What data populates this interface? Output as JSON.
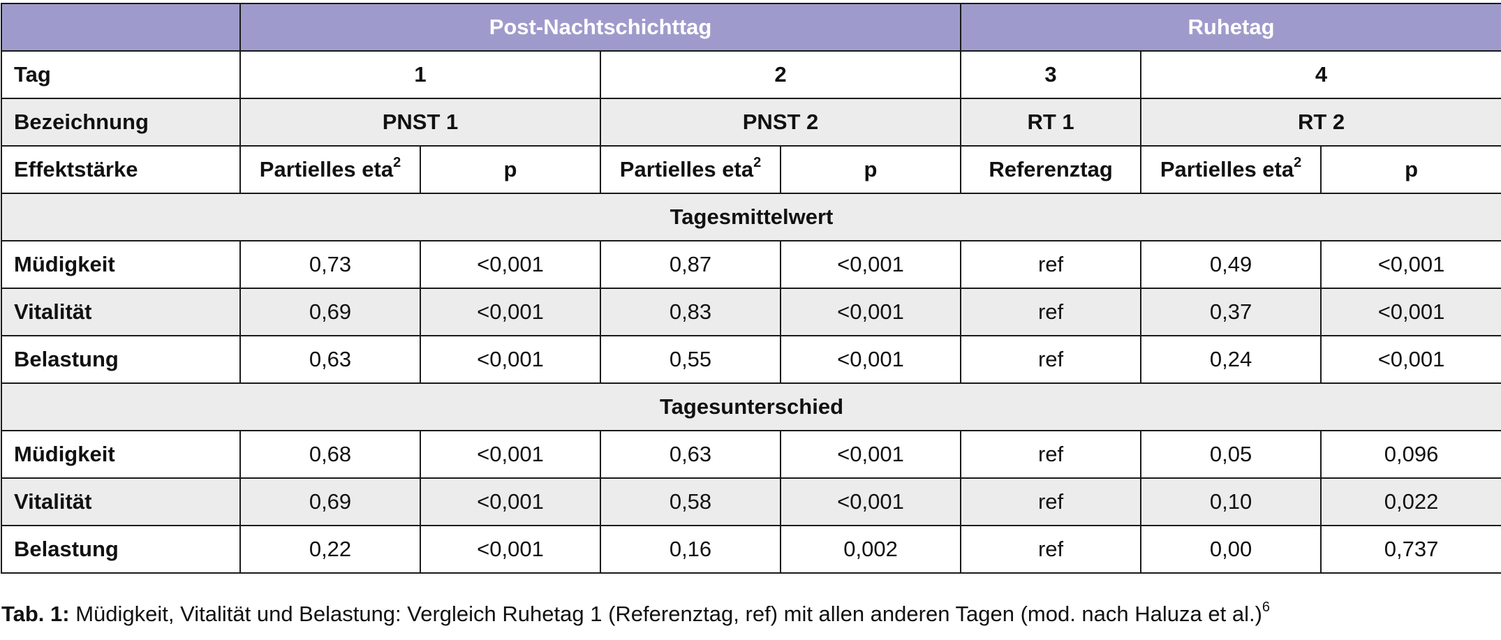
{
  "table": {
    "group_headers": [
      "Post-Nachtschichttag",
      "Ruhetag"
    ],
    "tag_row": {
      "label": "Tag",
      "values": [
        "1",
        "2",
        "3",
        "4"
      ]
    },
    "bezeichnung_row": {
      "label": "Bezeichnung",
      "values": [
        "PNST 1",
        "PNST 2",
        "RT 1",
        "RT 2"
      ]
    },
    "effekt_row": {
      "label": "Effektstärke",
      "partielles": "Partielles eta",
      "sup": "2",
      "p": "p",
      "referenz": "Referenztag"
    },
    "sections": [
      {
        "title": "Tagesmittelwert",
        "rows": [
          {
            "label": "Müdigkeit",
            "c": [
              "0,73",
              "<0,001",
              "0,87",
              "<0,001",
              "ref",
              "0,49",
              "<0,001"
            ]
          },
          {
            "label": "Vitalität",
            "c": [
              "0,69",
              "<0,001",
              "0,83",
              "<0,001",
              "ref",
              "0,37",
              "<0,001"
            ]
          },
          {
            "label": "Belastung",
            "c": [
              "0,63",
              "<0,001",
              "0,55",
              "<0,001",
              "ref",
              "0,24",
              "<0,001"
            ]
          }
        ]
      },
      {
        "title": "Tagesunterschied",
        "rows": [
          {
            "label": "Müdigkeit",
            "c": [
              "0,68",
              "<0,001",
              "0,63",
              "<0,001",
              "ref",
              "0,05",
              "0,096"
            ]
          },
          {
            "label": "Vitalität",
            "c": [
              "0,69",
              "<0,001",
              "0,58",
              "<0,001",
              "ref",
              "0,10",
              "0,022"
            ]
          },
          {
            "label": "Belastung",
            "c": [
              "0,22",
              "<0,001",
              "0,16",
              "0,002",
              "ref",
              "0,00",
              "0,737"
            ]
          }
        ]
      }
    ]
  },
  "caption": {
    "label": "Tab. 1:",
    "text": " Müdigkeit, Vitalität und Belastung: Vergleich Ruhetag 1 (Referenztag, ref) mit allen anderen Tagen (mod. nach Haluza et al.)",
    "sup": "6"
  },
  "colors": {
    "header_bg": "#9e9bcc",
    "row_alt": "#ececec",
    "border": "#1a1a1a"
  }
}
